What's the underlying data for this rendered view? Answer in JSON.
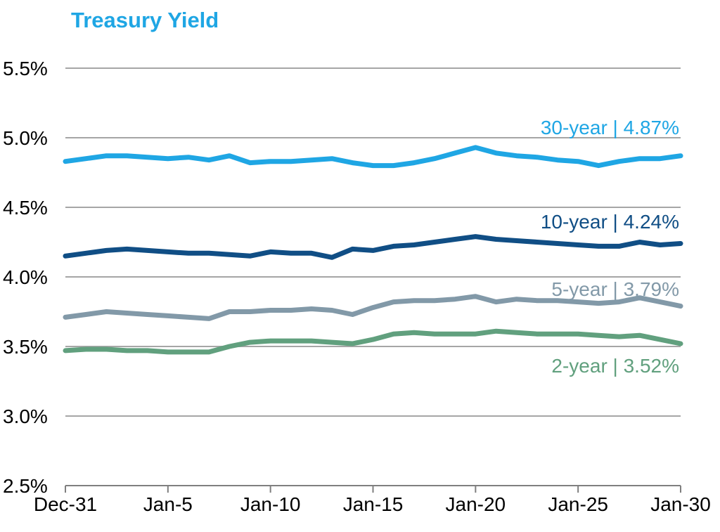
{
  "title": "Treasury Yield",
  "colors": {
    "title": "#1FA6E4",
    "grid": "#A6A6A6",
    "axis": "#7F7F7F",
    "tick_text": "#000000",
    "series_30_year": "#1FA6E4",
    "series_10_year": "#104E85",
    "series_5_year": "#8299A8",
    "series_2_year": "#61A07E"
  },
  "chart_data": {
    "type": "line",
    "title": "Treasury Yield",
    "xlabel": "",
    "ylabel": "",
    "grid": true,
    "legend_position": "inline-right-labels",
    "ylim": [
      2.5,
      5.5
    ],
    "y_tick_labels": [
      "5.5%",
      "5.0%",
      "4.5%",
      "4.0%",
      "3.5%",
      "3.0%",
      "2.5%"
    ],
    "y_tick_values": [
      5.5,
      5.0,
      4.5,
      4.0,
      3.5,
      3.0,
      2.5
    ],
    "x_tick_labels": [
      "Dec-31",
      "Jan-5",
      "Jan-10",
      "Jan-15",
      "Jan-20",
      "Jan-25",
      "Jan-30"
    ],
    "x_tick_days": [
      0,
      5,
      10,
      15,
      20,
      25,
      30
    ],
    "x_range_days": [
      0,
      30
    ],
    "series": [
      {
        "name": "30-year",
        "label": "30-year | 4.87%",
        "last_value": 4.87,
        "color": "#1FA6E4",
        "values": [
          4.83,
          4.85,
          4.87,
          4.87,
          4.86,
          4.85,
          4.86,
          4.84,
          4.87,
          4.82,
          4.83,
          4.83,
          4.84,
          4.85,
          4.82,
          4.8,
          4.8,
          4.82,
          4.85,
          4.89,
          4.93,
          4.89,
          4.87,
          4.86,
          4.84,
          4.83,
          4.8,
          4.83,
          4.85,
          4.85,
          4.87
        ]
      },
      {
        "name": "10-year",
        "label": "10-year | 4.24%",
        "last_value": 4.24,
        "color": "#104E85",
        "values": [
          4.15,
          4.17,
          4.19,
          4.2,
          4.19,
          4.18,
          4.17,
          4.17,
          4.16,
          4.15,
          4.18,
          4.17,
          4.17,
          4.14,
          4.2,
          4.19,
          4.22,
          4.23,
          4.25,
          4.27,
          4.29,
          4.27,
          4.26,
          4.25,
          4.24,
          4.23,
          4.22,
          4.22,
          4.25,
          4.23,
          4.24
        ]
      },
      {
        "name": "5-year",
        "label": "5-year | 3.79%",
        "last_value": 3.79,
        "color": "#8299A8",
        "values": [
          3.71,
          3.73,
          3.75,
          3.74,
          3.73,
          3.72,
          3.71,
          3.7,
          3.75,
          3.75,
          3.76,
          3.76,
          3.77,
          3.76,
          3.73,
          3.78,
          3.82,
          3.83,
          3.83,
          3.84,
          3.86,
          3.82,
          3.84,
          3.83,
          3.83,
          3.82,
          3.81,
          3.82,
          3.85,
          3.82,
          3.79
        ]
      },
      {
        "name": "2-year",
        "label": "2-year | 3.52%",
        "last_value": 3.52,
        "color": "#61A07E",
        "values": [
          3.47,
          3.48,
          3.48,
          3.47,
          3.47,
          3.46,
          3.46,
          3.46,
          3.5,
          3.53,
          3.54,
          3.54,
          3.54,
          3.53,
          3.52,
          3.55,
          3.59,
          3.6,
          3.59,
          3.59,
          3.59,
          3.61,
          3.6,
          3.59,
          3.59,
          3.59,
          3.58,
          3.57,
          3.58,
          3.55,
          3.52
        ]
      }
    ]
  }
}
